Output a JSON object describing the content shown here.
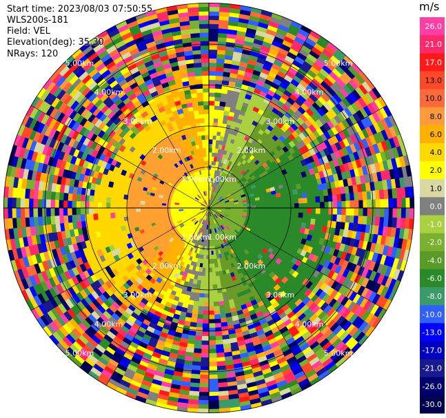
{
  "info": {
    "start_time": "Start time: 2023/08/03 07:50:55",
    "instrument": "WLS200s-181",
    "field": "Field: VEL",
    "elevation": "Elevation(deg): 35.30",
    "nrays": "NRays: 120"
  },
  "colorbar": {
    "unit": "m/s",
    "ticks": [
      "26.0",
      "21.0",
      "17.0",
      "13.0",
      "10.0",
      "8.0",
      "6.0",
      "4.0",
      "2.0",
      "1.0",
      "0.0",
      "-1.0",
      "-2.0",
      "-4.0",
      "-6.0",
      "-8.0",
      "-10.0",
      "-13.0",
      "-17.0",
      "-21.0",
      "-26.0",
      "-30.0"
    ],
    "colors": [
      "#ff3fa6",
      "#ff2a6a",
      "#ff1a1a",
      "#ff4a2a",
      "#ff6a3a",
      "#ff9a3a",
      "#ffb000",
      "#ffd800",
      "#ffff00",
      "#d8d8a0",
      "#808080",
      "#a8d040",
      "#7ab030",
      "#5a9a28",
      "#2a8a2a",
      "#3a9a6a",
      "#3060ff",
      "#0000ff",
      "#0000c0",
      "#1a1a90",
      "#000070",
      "#000050"
    ]
  },
  "range_rings": {
    "labels": [
      "1.00km",
      "2.00km",
      "3.00km",
      "4.00km",
      "5.00km"
    ]
  }
}
